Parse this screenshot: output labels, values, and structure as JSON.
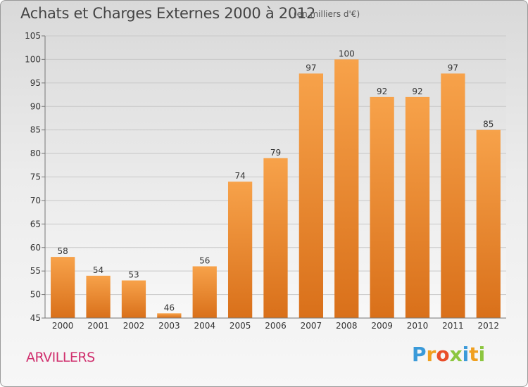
{
  "chart_data": {
    "type": "bar",
    "title": "Achats et Charges Externes 2000 à 2012",
    "subtitle": "(en milliers d'€)",
    "categories": [
      "2000",
      "2001",
      "2002",
      "2003",
      "2004",
      "2005",
      "2006",
      "2007",
      "2008",
      "2009",
      "2010",
      "2011",
      "2012"
    ],
    "values": [
      58,
      54,
      53,
      46,
      56,
      74,
      79,
      97,
      100,
      92,
      92,
      97,
      85
    ],
    "ylim": [
      45,
      105
    ],
    "yticks": [
      45,
      50,
      55,
      60,
      65,
      70,
      75,
      80,
      85,
      90,
      95,
      100,
      105
    ],
    "grid": true,
    "bar_color": "#f08c30"
  },
  "commune_label": "ARVILLERS",
  "logo": {
    "letters": [
      "P",
      "r",
      "o",
      "x",
      "i",
      "t",
      "i"
    ],
    "colors": [
      "#3a9ad9",
      "#f0a020",
      "#e94e2a",
      "#8cc63f",
      "#3a9ad9",
      "#f0a020",
      "#8cc63f"
    ]
  }
}
